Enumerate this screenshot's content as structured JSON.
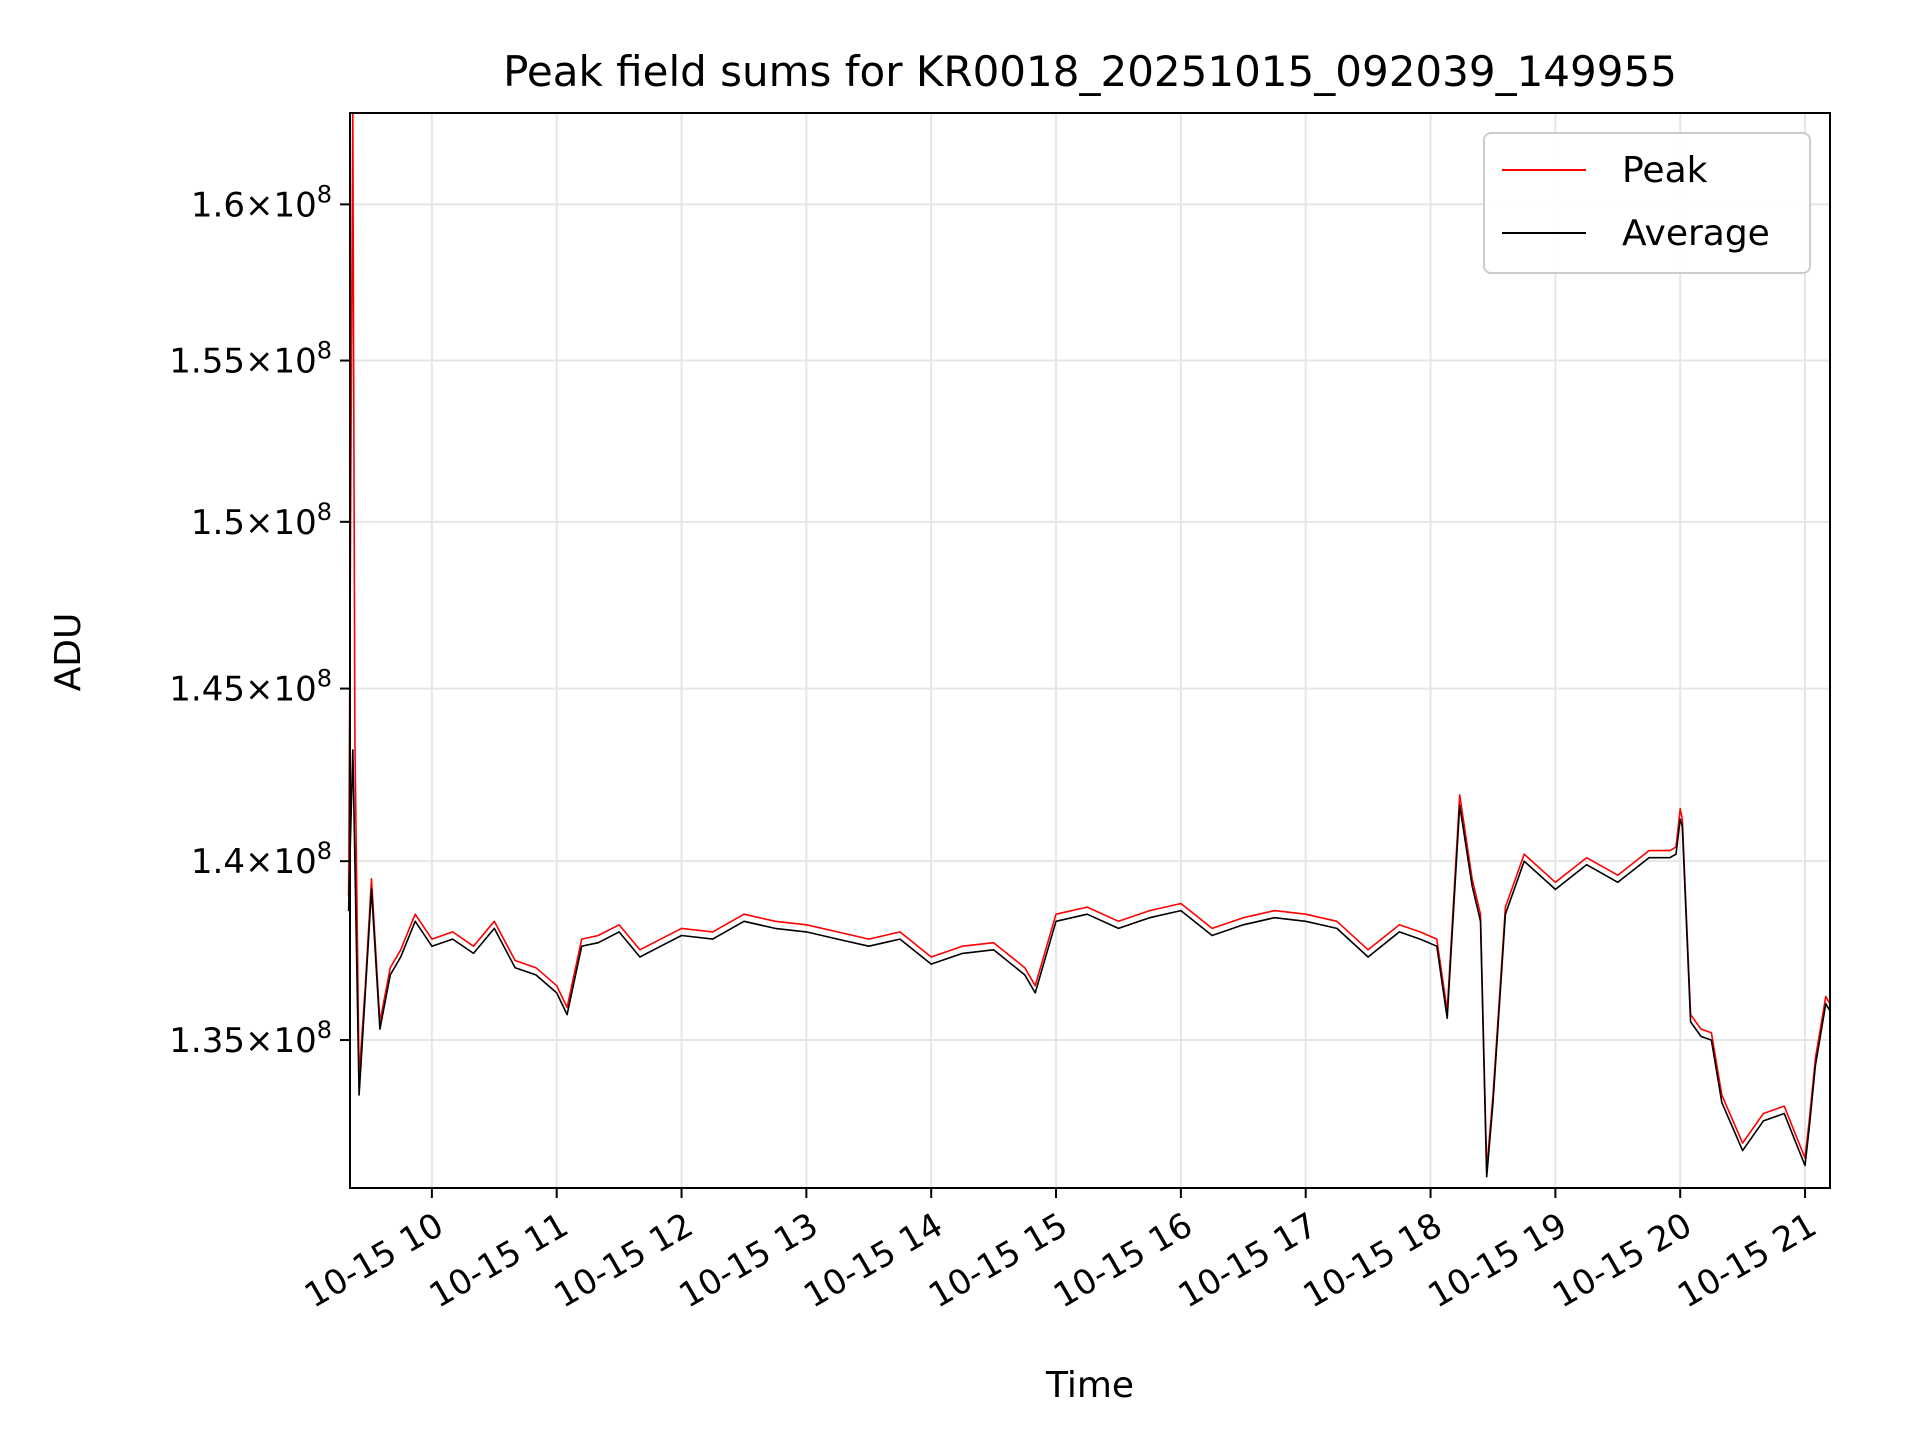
{
  "chart_data": {
    "type": "line",
    "title": "Peak field sums for KR0018_20251015_092039_149955",
    "xlabel": "Time",
    "ylabel": "ADU",
    "grid": true,
    "legend_position": "top-right",
    "xlim": [
      "2025-10-15T09:20:39",
      "2025-10-15T21:12:00"
    ],
    "ylim": [
      131000000,
      163000000
    ],
    "yscale": "log",
    "x_ticks": [
      {
        "t": "2025-10-15T10:00",
        "label": "10-15 10"
      },
      {
        "t": "2025-10-15T11:00",
        "label": "10-15 11"
      },
      {
        "t": "2025-10-15T12:00",
        "label": "10-15 12"
      },
      {
        "t": "2025-10-15T13:00",
        "label": "10-15 13"
      },
      {
        "t": "2025-10-15T14:00",
        "label": "10-15 14"
      },
      {
        "t": "2025-10-15T15:00",
        "label": "10-15 15"
      },
      {
        "t": "2025-10-15T16:00",
        "label": "10-15 16"
      },
      {
        "t": "2025-10-15T17:00",
        "label": "10-15 17"
      },
      {
        "t": "2025-10-15T18:00",
        "label": "10-15 18"
      },
      {
        "t": "2025-10-15T19:00",
        "label": "10-15 19"
      },
      {
        "t": "2025-10-15T20:00",
        "label": "10-15 20"
      },
      {
        "t": "2025-10-15T21:00",
        "label": "10-15 21"
      }
    ],
    "y_ticks": [
      {
        "v": 135000000,
        "mant": "1.35",
        "exp": "8"
      },
      {
        "v": 140000000,
        "mant": "1.4",
        "exp": "8"
      },
      {
        "v": 145000000,
        "mant": "1.45",
        "exp": "8"
      },
      {
        "v": 150000000,
        "mant": "1.5",
        "exp": "8"
      },
      {
        "v": 155000000,
        "mant": "1.55",
        "exp": "8"
      },
      {
        "v": 160000000,
        "mant": "1.6",
        "exp": "8"
      }
    ],
    "series": [
      {
        "name": "Peak",
        "color": "#ff0000",
        "x": [
          "2025-10-15T09:20",
          "2025-10-15T09:22",
          "2025-10-15T09:23",
          "2025-10-15T09:25",
          "2025-10-15T09:28",
          "2025-10-15T09:31",
          "2025-10-15T09:35",
          "2025-10-15T09:40",
          "2025-10-15T09:45",
          "2025-10-15T09:52",
          "2025-10-15T10:00",
          "2025-10-15T10:10",
          "2025-10-15T10:20",
          "2025-10-15T10:30",
          "2025-10-15T10:40",
          "2025-10-15T10:50",
          "2025-10-15T11:00",
          "2025-10-15T11:05",
          "2025-10-15T11:12",
          "2025-10-15T11:20",
          "2025-10-15T11:30",
          "2025-10-15T11:40",
          "2025-10-15T11:50",
          "2025-10-15T12:00",
          "2025-10-15T12:15",
          "2025-10-15T12:30",
          "2025-10-15T12:45",
          "2025-10-15T13:00",
          "2025-10-15T13:15",
          "2025-10-15T13:30",
          "2025-10-15T13:45",
          "2025-10-15T14:00",
          "2025-10-15T14:15",
          "2025-10-15T14:30",
          "2025-10-15T14:45",
          "2025-10-15T14:50",
          "2025-10-15T15:00",
          "2025-10-15T15:15",
          "2025-10-15T15:30",
          "2025-10-15T15:45",
          "2025-10-15T16:00",
          "2025-10-15T16:15",
          "2025-10-15T16:30",
          "2025-10-15T16:45",
          "2025-10-15T17:00",
          "2025-10-15T17:15",
          "2025-10-15T17:30",
          "2025-10-15T17:45",
          "2025-10-15T17:55",
          "2025-10-15T18:03",
          "2025-10-15T18:08",
          "2025-10-15T18:14",
          "2025-10-15T18:20",
          "2025-10-15T18:24",
          "2025-10-15T18:27",
          "2025-10-15T18:30",
          "2025-10-15T18:36",
          "2025-10-15T18:45",
          "2025-10-15T19:00",
          "2025-10-15T19:15",
          "2025-10-15T19:30",
          "2025-10-15T19:45",
          "2025-10-15T19:55",
          "2025-10-15T19:58",
          "2025-10-15T20:00",
          "2025-10-15T20:01",
          "2025-10-15T20:05",
          "2025-10-15T20:10",
          "2025-10-15T20:15",
          "2025-10-15T20:20",
          "2025-10-15T20:30",
          "2025-10-15T20:40",
          "2025-10-15T20:50",
          "2025-10-15T21:00",
          "2025-10-15T21:02",
          "2025-10-15T21:05",
          "2025-10-15T21:10",
          "2025-10-15T21:12"
        ],
        "values": [
          139000000,
          163000000,
          143500000,
          134000000,
          136500000,
          139500000,
          135500000,
          137000000,
          137500000,
          138500000,
          137800000,
          138000000,
          137600000,
          138300000,
          137200000,
          137000000,
          136500000,
          135900000,
          137800000,
          137900000,
          138200000,
          137500000,
          137800000,
          138100000,
          138000000,
          138500000,
          138300000,
          138200000,
          138000000,
          137800000,
          138000000,
          137300000,
          137600000,
          137700000,
          137000000,
          136500000,
          138500000,
          138700000,
          138300000,
          138600000,
          138800000,
          138100000,
          138400000,
          138600000,
          138500000,
          138300000,
          137500000,
          138200000,
          138000000,
          137800000,
          135800000,
          141900000,
          139500000,
          138500000,
          131500000,
          133500000,
          138700000,
          140200000,
          139400000,
          140100000,
          139600000,
          140300000,
          140300000,
          140400000,
          141500000,
          141200000,
          135700000,
          135300000,
          135200000,
          133500000,
          132200000,
          133000000,
          133200000,
          131800000,
          132800000,
          134500000,
          136200000,
          136000000
        ],
        "note_drawn": true
      },
      {
        "name": "Average",
        "color": "#000000",
        "x": [
          "2025-10-15T09:20",
          "2025-10-15T09:22",
          "2025-10-15T09:23",
          "2025-10-15T09:25",
          "2025-10-15T09:28",
          "2025-10-15T09:31",
          "2025-10-15T09:35",
          "2025-10-15T09:40",
          "2025-10-15T09:45",
          "2025-10-15T09:52",
          "2025-10-15T10:00",
          "2025-10-15T10:10",
          "2025-10-15T10:20",
          "2025-10-15T10:30",
          "2025-10-15T10:40",
          "2025-10-15T10:50",
          "2025-10-15T11:00",
          "2025-10-15T11:05",
          "2025-10-15T11:12",
          "2025-10-15T11:20",
          "2025-10-15T11:30",
          "2025-10-15T11:40",
          "2025-10-15T11:50",
          "2025-10-15T12:00",
          "2025-10-15T12:15",
          "2025-10-15T12:30",
          "2025-10-15T12:45",
          "2025-10-15T13:00",
          "2025-10-15T13:15",
          "2025-10-15T13:30",
          "2025-10-15T13:45",
          "2025-10-15T14:00",
          "2025-10-15T14:15",
          "2025-10-15T14:30",
          "2025-10-15T14:45",
          "2025-10-15T14:50",
          "2025-10-15T15:00",
          "2025-10-15T15:15",
          "2025-10-15T15:30",
          "2025-10-15T15:45",
          "2025-10-15T16:00",
          "2025-10-15T16:15",
          "2025-10-15T16:30",
          "2025-10-15T16:45",
          "2025-10-15T17:00",
          "2025-10-15T17:15",
          "2025-10-15T17:30",
          "2025-10-15T17:45",
          "2025-10-15T17:55",
          "2025-10-15T18:03",
          "2025-10-15T18:08",
          "2025-10-15T18:14",
          "2025-10-15T18:20",
          "2025-10-15T18:24",
          "2025-10-15T18:27",
          "2025-10-15T18:30",
          "2025-10-15T18:36",
          "2025-10-15T18:45",
          "2025-10-15T19:00",
          "2025-10-15T19:15",
          "2025-10-15T19:30",
          "2025-10-15T19:45",
          "2025-10-15T19:55",
          "2025-10-15T19:58",
          "2025-10-15T20:00",
          "2025-10-15T20:01",
          "2025-10-15T20:05",
          "2025-10-15T20:10",
          "2025-10-15T20:15",
          "2025-10-15T20:20",
          "2025-10-15T20:30",
          "2025-10-15T20:40",
          "2025-10-15T20:50",
          "2025-10-15T21:00",
          "2025-10-15T21:02",
          "2025-10-15T21:05",
          "2025-10-15T21:10",
          "2025-10-15T21:12"
        ],
        "values": [
          138600000,
          143200000,
          140000000,
          133500000,
          136300000,
          139200000,
          135300000,
          136800000,
          137300000,
          138300000,
          137600000,
          137800000,
          137400000,
          138100000,
          137000000,
          136800000,
          136300000,
          135700000,
          137600000,
          137700000,
          138000000,
          137300000,
          137600000,
          137900000,
          137800000,
          138300000,
          138100000,
          138000000,
          137800000,
          137600000,
          137800000,
          137100000,
          137400000,
          137500000,
          136800000,
          136300000,
          138300000,
          138500000,
          138100000,
          138400000,
          138600000,
          137900000,
          138200000,
          138400000,
          138300000,
          138100000,
          137300000,
          138000000,
          137800000,
          137600000,
          135600000,
          141600000,
          139300000,
          138300000,
          131300000,
          133300000,
          138500000,
          140000000,
          139200000,
          139900000,
          139400000,
          140100000,
          140100000,
          140200000,
          141200000,
          141000000,
          135500000,
          135100000,
          135000000,
          133300000,
          132000000,
          132800000,
          133000000,
          131600000,
          132600000,
          134300000,
          136000000,
          135800000
        ]
      }
    ]
  }
}
